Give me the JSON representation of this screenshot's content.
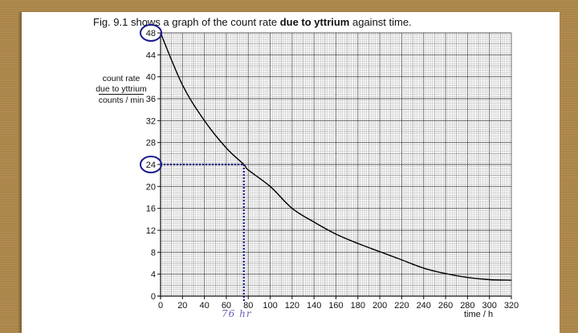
{
  "caption": {
    "prefix": "Fig. 9.1 shows a graph of the count rate ",
    "bold": "due to yttrium",
    "suffix": " against time."
  },
  "y_axis_label": {
    "line1": "count rate",
    "line2": "due to yttrium",
    "units": "counts / min"
  },
  "x_axis_label": "time / h",
  "annotation": {
    "handwritten": "76 hr",
    "circled_values": [
      "48",
      "24"
    ],
    "marker_color": "#1a1a8c"
  },
  "chart_data": {
    "type": "line",
    "title": "Fig. 9.1 shows a graph of the count rate due to yttrium against time.",
    "xlabel": "time / h",
    "ylabel": "count rate due to yttrium / counts/min",
    "xlim": [
      0,
      320
    ],
    "ylim": [
      0,
      48
    ],
    "x_ticks": [
      0,
      20,
      40,
      60,
      80,
      100,
      120,
      140,
      160,
      180,
      200,
      220,
      240,
      260,
      280,
      300,
      320
    ],
    "y_ticks": [
      0,
      4,
      8,
      12,
      16,
      20,
      24,
      28,
      32,
      36,
      40,
      44,
      48
    ],
    "grid": true,
    "series": [
      {
        "name": "count rate due to yttrium",
        "x": [
          0,
          20,
          40,
          60,
          76,
          80,
          100,
          120,
          140,
          160,
          180,
          200,
          220,
          240,
          260,
          280,
          300,
          320
        ],
        "values": [
          48,
          38.5,
          32,
          27,
          24,
          23,
          20,
          16,
          13.5,
          11.3,
          9.6,
          8.1,
          6.6,
          5.1,
          4.1,
          3.4,
          3.0,
          2.9
        ]
      }
    ],
    "annotations": [
      {
        "type": "circle",
        "axis": "y",
        "value": 48
      },
      {
        "type": "circle",
        "axis": "y",
        "value": 24
      },
      {
        "type": "dotted_line",
        "from": [
          0,
          24
        ],
        "to": [
          76,
          24
        ]
      },
      {
        "type": "dotted_line",
        "from": [
          76,
          24
        ],
        "to": [
          76,
          0
        ]
      },
      {
        "type": "handwritten_text",
        "text": "76 hr",
        "at_x": 76
      }
    ]
  }
}
